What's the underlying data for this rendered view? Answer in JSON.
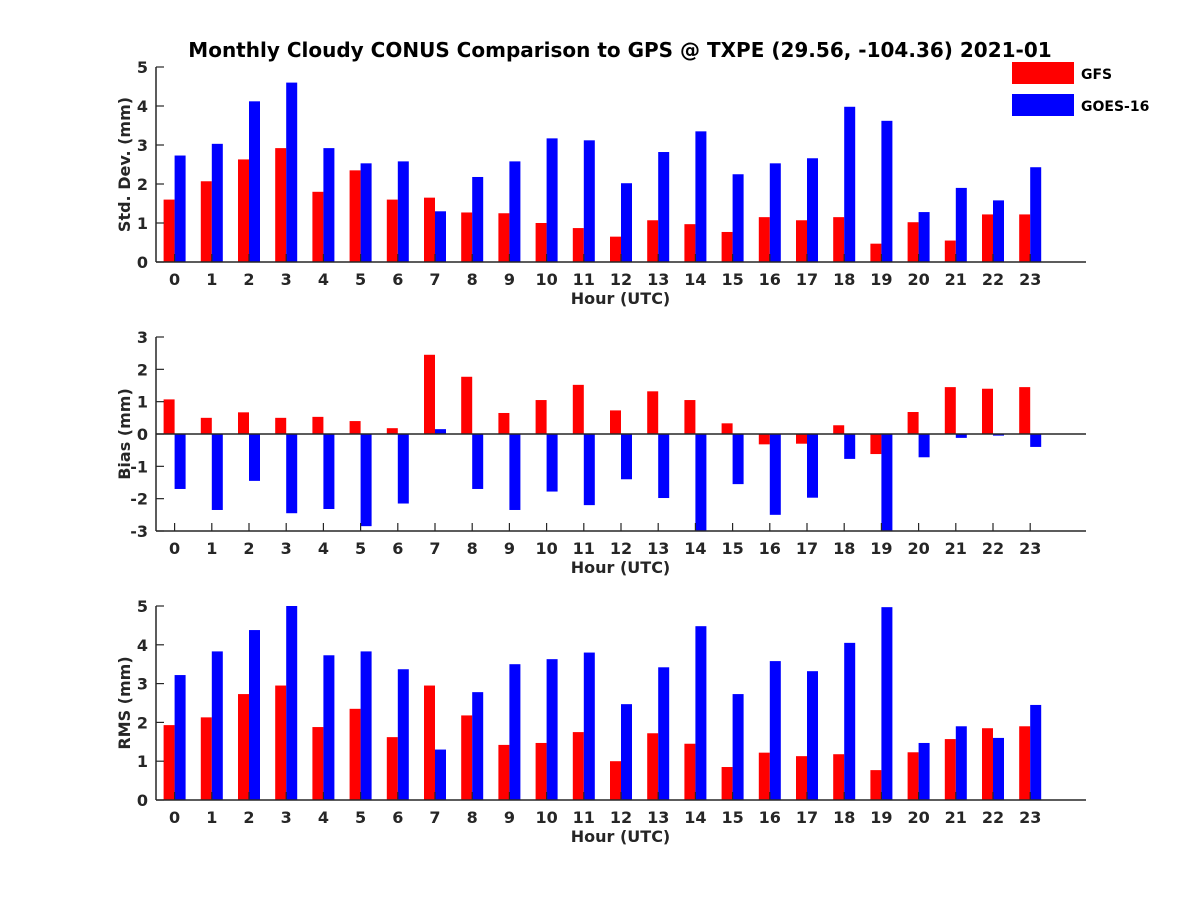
{
  "title": "Monthly Cloudy CONUS Comparison to GPS @ TXPE (29.56, -104.36) 2021-01",
  "colors": {
    "GFS": "#ff0000",
    "GOES-16": "#0000ff",
    "axis": "#262626"
  },
  "legend": {
    "placement": "top-right",
    "entries": [
      "GFS",
      "GOES-16"
    ]
  },
  "chart_data": [
    {
      "type": "bar",
      "xlabel": "Hour (UTC)",
      "ylabel": "Std. Dev. (mm)",
      "ylim": [
        0,
        5
      ],
      "yticks": [
        0,
        1,
        2,
        3,
        4,
        5
      ],
      "categories": [
        "0",
        "1",
        "2",
        "3",
        "4",
        "5",
        "6",
        "7",
        "8",
        "9",
        "10",
        "11",
        "12",
        "13",
        "14",
        "15",
        "16",
        "17",
        "18",
        "19",
        "20",
        "21",
        "22",
        "23"
      ],
      "series": [
        {
          "name": "GFS",
          "values": [
            1.6,
            2.07,
            2.63,
            2.92,
            1.8,
            2.35,
            1.6,
            1.65,
            1.27,
            1.25,
            1.0,
            0.87,
            0.65,
            1.07,
            0.97,
            0.77,
            1.15,
            1.07,
            1.15,
            0.47,
            1.02,
            0.55,
            1.22,
            1.22
          ]
        },
        {
          "name": "GOES-16",
          "values": [
            2.73,
            3.03,
            4.12,
            4.6,
            2.92,
            2.53,
            2.58,
            1.3,
            2.18,
            2.58,
            3.17,
            3.12,
            2.02,
            2.82,
            3.35,
            2.25,
            2.53,
            2.66,
            3.98,
            3.62,
            1.28,
            1.9,
            1.58,
            2.43
          ]
        }
      ]
    },
    {
      "type": "bar",
      "xlabel": "Hour (UTC)",
      "ylabel": "Bias (mm)",
      "ylim": [
        -3,
        3
      ],
      "yticks": [
        -3,
        -2,
        -1,
        0,
        1,
        2,
        3
      ],
      "categories": [
        "0",
        "1",
        "2",
        "3",
        "4",
        "5",
        "6",
        "7",
        "8",
        "9",
        "10",
        "11",
        "12",
        "13",
        "14",
        "15",
        "16",
        "17",
        "18",
        "19",
        "20",
        "21",
        "22",
        "23"
      ],
      "series": [
        {
          "name": "GFS",
          "values": [
            1.07,
            0.5,
            0.67,
            0.5,
            0.53,
            0.4,
            0.18,
            2.45,
            1.77,
            0.65,
            1.05,
            1.52,
            0.73,
            1.32,
            1.05,
            0.33,
            -0.32,
            -0.3,
            0.27,
            -0.62,
            0.68,
            1.45,
            1.4,
            1.45
          ]
        },
        {
          "name": "GOES-16",
          "values": [
            -1.7,
            -2.35,
            -1.45,
            -2.45,
            -2.32,
            -2.85,
            -2.15,
            0.15,
            -1.7,
            -2.35,
            -1.78,
            -2.2,
            -1.4,
            -1.98,
            -3.0,
            -1.55,
            -2.5,
            -1.97,
            -0.77,
            -3.0,
            -0.72,
            -0.12,
            -0.05,
            -0.4
          ]
        }
      ]
    },
    {
      "type": "bar",
      "xlabel": "Hour (UTC)",
      "ylabel": "RMS (mm)",
      "ylim": [
        0,
        5
      ],
      "yticks": [
        0,
        1,
        2,
        3,
        4,
        5
      ],
      "categories": [
        "0",
        "1",
        "2",
        "3",
        "4",
        "5",
        "6",
        "7",
        "8",
        "9",
        "10",
        "11",
        "12",
        "13",
        "14",
        "15",
        "16",
        "17",
        "18",
        "19",
        "20",
        "21",
        "22",
        "23"
      ],
      "series": [
        {
          "name": "GFS",
          "values": [
            1.93,
            2.13,
            2.73,
            2.95,
            1.88,
            2.35,
            1.62,
            2.95,
            2.18,
            1.42,
            1.47,
            1.75,
            1.0,
            1.72,
            1.45,
            0.85,
            1.22,
            1.13,
            1.18,
            0.77,
            1.23,
            1.57,
            1.85,
            1.9
          ]
        },
        {
          "name": "GOES-16",
          "values": [
            3.22,
            3.83,
            4.38,
            5.0,
            3.73,
            3.83,
            3.37,
            1.3,
            2.78,
            3.5,
            3.63,
            3.8,
            2.47,
            3.42,
            4.48,
            2.73,
            3.58,
            3.32,
            4.05,
            4.97,
            1.47,
            1.9,
            1.6,
            2.45
          ]
        }
      ]
    }
  ]
}
